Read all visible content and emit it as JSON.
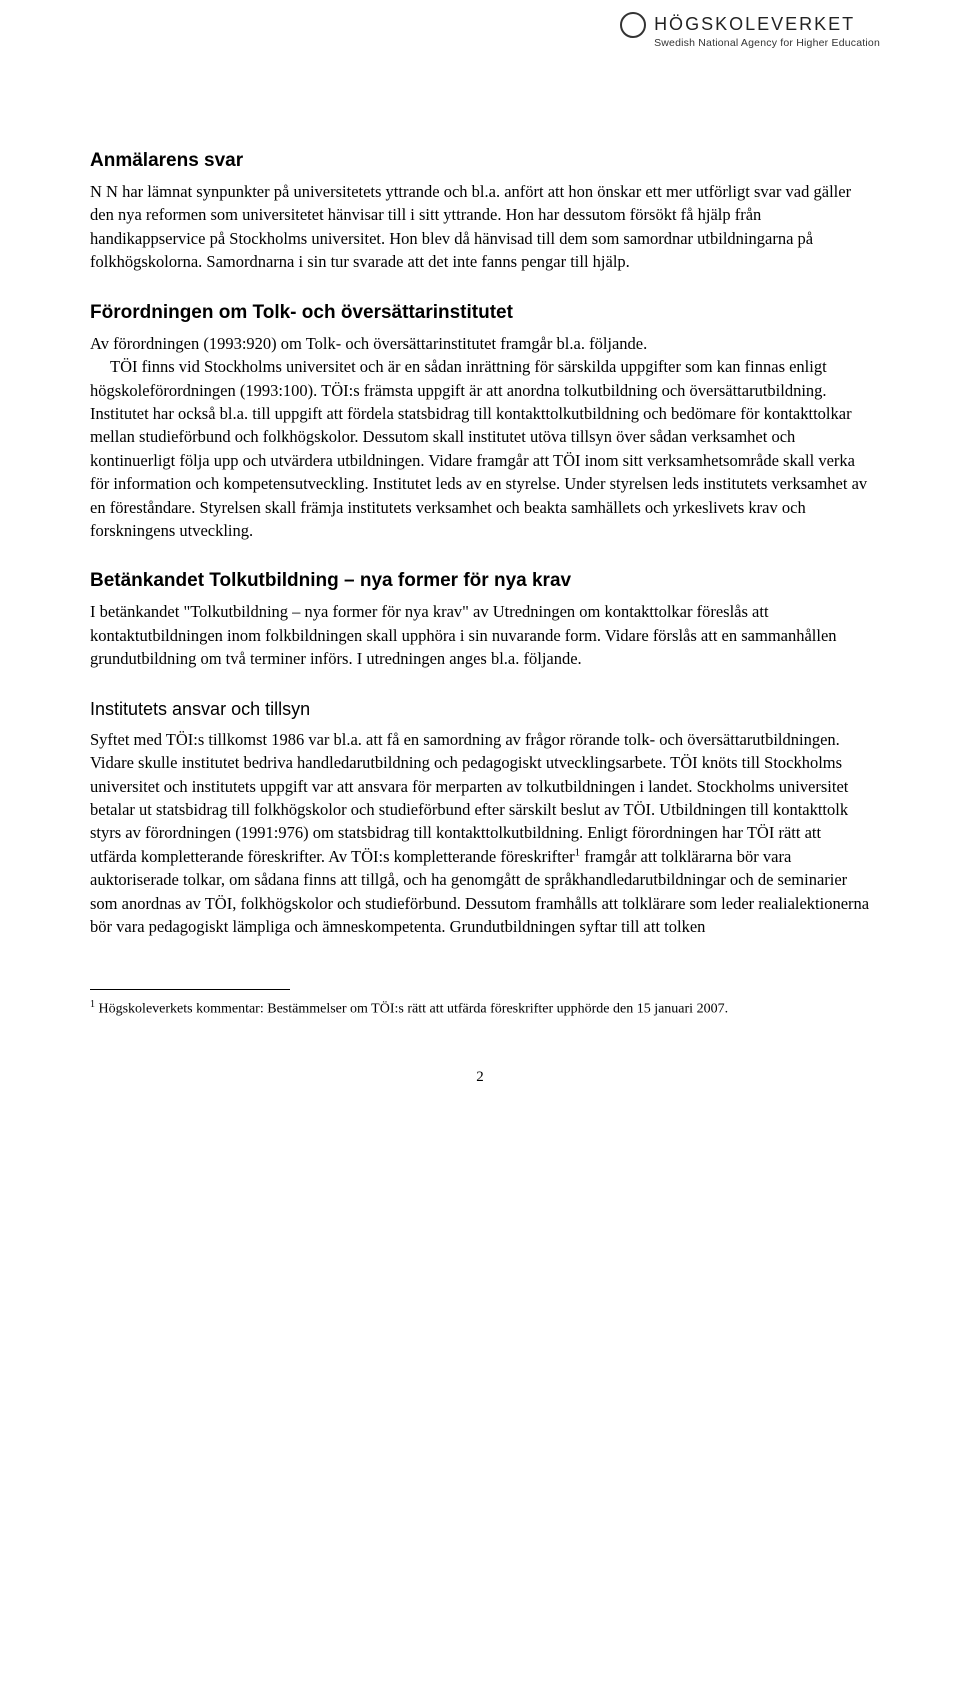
{
  "logo": {
    "main": "HÖGSKOLEVERKET",
    "sub": "Swedish National Agency for Higher Education"
  },
  "sections": {
    "s1": {
      "heading": "Anmälarens svar",
      "p1": "N N har lämnat synpunkter på universitetets yttrande och bl.a. anfört att hon önskar ett mer utförligt svar vad gäller den nya reformen som universitetet hänvisar till i sitt yttrande. Hon har dessutom försökt få hjälp från handikappservice på Stockholms universitet. Hon blev då hänvisad till dem som samordnar utbildningarna på folkhögskolorna. Samordnarna i sin tur svarade att det inte fanns pengar till hjälp."
    },
    "s2": {
      "heading": "Förordningen om Tolk- och översättarinstitutet",
      "p1": "Av förordningen (1993:920) om Tolk- och översättarinstitutet framgår bl.a. följande.",
      "p2": "TÖI finns vid Stockholms universitet och är en sådan inrättning för särskilda uppgifter som kan finnas enligt högskoleförordningen (1993:100). TÖI:s främsta uppgift är att anordna tolkutbildning och översättarutbildning. Institutet har också bl.a. till uppgift att fördela statsbidrag till kontakttolkutbildning och bedömare för kontakttolkar mellan studieförbund och folkhögskolor. Dessutom skall institutet utöva tillsyn över sådan verksamhet och kontinuerligt följa upp och utvärdera utbildningen. Vidare framgår att TÖI inom sitt verksamhetsområde skall verka för information och kompetensutveckling. Institutet leds av en styrelse. Under styrelsen leds institutets verksamhet av en föreståndare. Styrelsen skall främja institutets verksamhet och beakta samhällets och yrkeslivets krav och forskningens utveckling."
    },
    "s3": {
      "heading": "Betänkandet Tolkutbildning – nya former för nya krav",
      "p1": "I betänkandet \"Tolkutbildning – nya former för nya krav\" av Utredningen om kontakttolkar föreslås att kontaktutbildningen inom folkbildningen skall upphöra i sin nuvarande form. Vidare förslås att en sammanhållen grundutbildning om två terminer införs. I utredningen anges bl.a. följande."
    },
    "s4": {
      "heading": "Institutets ansvar och tillsyn",
      "p1a": "Syftet med TÖI:s tillkomst 1986 var bl.a. att få en samordning av frågor rörande tolk- och översättarutbildningen. Vidare skulle institutet bedriva handledarutbildning och pedagogiskt utvecklingsarbete. TÖI knöts till Stockholms universitet och institutets uppgift var att ansvara för merparten av tolkutbildningen i landet. Stockholms universitet betalar ut statsbidrag till folkhögskolor och studieförbund efter särskilt beslut av TÖI. Utbildningen till kontakttolk styrs av förordningen (1991:976) om statsbidrag till kontakttolkutbildning. Enligt förordningen har TÖI rätt att utfärda kompletterande föreskrifter. Av TÖI:s kompletterande föreskrifter",
      "p1b": " framgår att tolklärarna bör vara auktoriserade tolkar, om sådana finns att tillgå, och ha genomgått de språkhandledarutbildningar och de seminarier som anordnas av TÖI, folkhögskolor och studieförbund. Dessutom framhålls att tolklärare som leder realialektionerna bör vara pedagogiskt lämpliga och ämneskompetenta. Grundutbildningen syftar till att tolken"
    }
  },
  "footnote": {
    "marker": "1",
    "text": " Högskoleverkets kommentar: Bestämmelser om TÖI:s rätt att utfärda föreskrifter upphörde den 15 januari 2007."
  },
  "pageNumber": "2"
}
